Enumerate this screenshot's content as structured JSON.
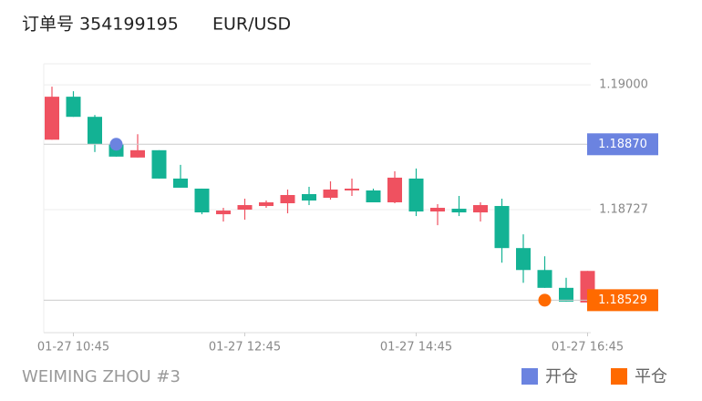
{
  "title": "订单号 354199195",
  "symbol": "EUR/USD",
  "footer": "WEIMING ZHOU #3",
  "chart_data": {
    "type": "candlestick",
    "x": [
      "01-27 10:30",
      "01-27 10:45",
      "01-27 11:00",
      "01-27 11:15",
      "01-27 11:30",
      "01-27 11:45",
      "01-27 12:00",
      "01-27 12:15",
      "01-27 12:30",
      "01-27 12:45",
      "01-27 13:00",
      "01-27 13:15",
      "01-27 13:30",
      "01-27 13:45",
      "01-27 14:00",
      "01-27 14:15",
      "01-27 14:30",
      "01-27 14:45",
      "01-27 15:00",
      "01-27 15:15",
      "01-27 15:30",
      "01-27 15:45",
      "01-27 16:00",
      "01-27 16:15",
      "01-27 16:30",
      "01-27 16:45"
    ],
    "open": [
      1.1888,
      1.18974,
      1.1893,
      1.1887,
      1.18841,
      1.18857,
      1.18795,
      1.18773,
      1.18717,
      1.18727,
      1.18735,
      1.18741,
      1.18761,
      1.18753,
      1.18769,
      1.18769,
      1.18743,
      1.18795,
      1.18723,
      1.18729,
      1.18721,
      1.18735,
      1.18643,
      1.18595,
      1.18556,
      1.18524
    ],
    "high": [
      1.18996,
      1.18986,
      1.18934,
      1.18882,
      1.18892,
      1.18857,
      1.18825,
      1.18773,
      1.18731,
      1.18751,
      1.18747,
      1.18771,
      1.18777,
      1.18789,
      1.18795,
      1.18773,
      1.18811,
      1.18817,
      1.18739,
      1.18757,
      1.18743,
      1.18751,
      1.18673,
      1.18625,
      1.18578,
      1.18593
    ],
    "low": [
      1.1888,
      1.1893,
      1.18853,
      1.18843,
      1.18841,
      1.18795,
      1.18775,
      1.18717,
      1.18701,
      1.18705,
      1.18731,
      1.18719,
      1.18737,
      1.18749,
      1.18757,
      1.18743,
      1.18741,
      1.18713,
      1.18693,
      1.18713,
      1.18701,
      1.18611,
      1.18567,
      1.18556,
      1.18526,
      1.18522
    ],
    "close": [
      1.18974,
      1.1893,
      1.1887,
      1.18843,
      1.18857,
      1.18795,
      1.18775,
      1.18721,
      1.18725,
      1.18737,
      1.18743,
      1.18759,
      1.18747,
      1.18771,
      1.18773,
      1.18743,
      1.18797,
      1.18723,
      1.18731,
      1.18721,
      1.18737,
      1.18643,
      1.18595,
      1.18556,
      1.18526,
      1.18593
    ],
    "up_color": "#ef5160",
    "down_color": "#13b294",
    "markers": [
      {
        "name": "开仓",
        "color": "#6b83e0",
        "x": "01-27 11:15",
        "value": 1.1887,
        "value_label": "1.18870"
      },
      {
        "name": "平仓",
        "color": "#ff6a00",
        "x": "01-27 16:15",
        "value": 1.18529,
        "value_label": "1.18529"
      }
    ],
    "ylim": [
      1.18458,
      1.19046
    ],
    "yticks": [
      {
        "value": 1.19,
        "label": "1.19000"
      },
      {
        "value": 1.18727,
        "label": "1.18727"
      }
    ],
    "xticks": [
      "01-27 10:45",
      "01-27 12:45",
      "01-27 14:45",
      "01-27 16:45"
    ],
    "grid": true
  }
}
